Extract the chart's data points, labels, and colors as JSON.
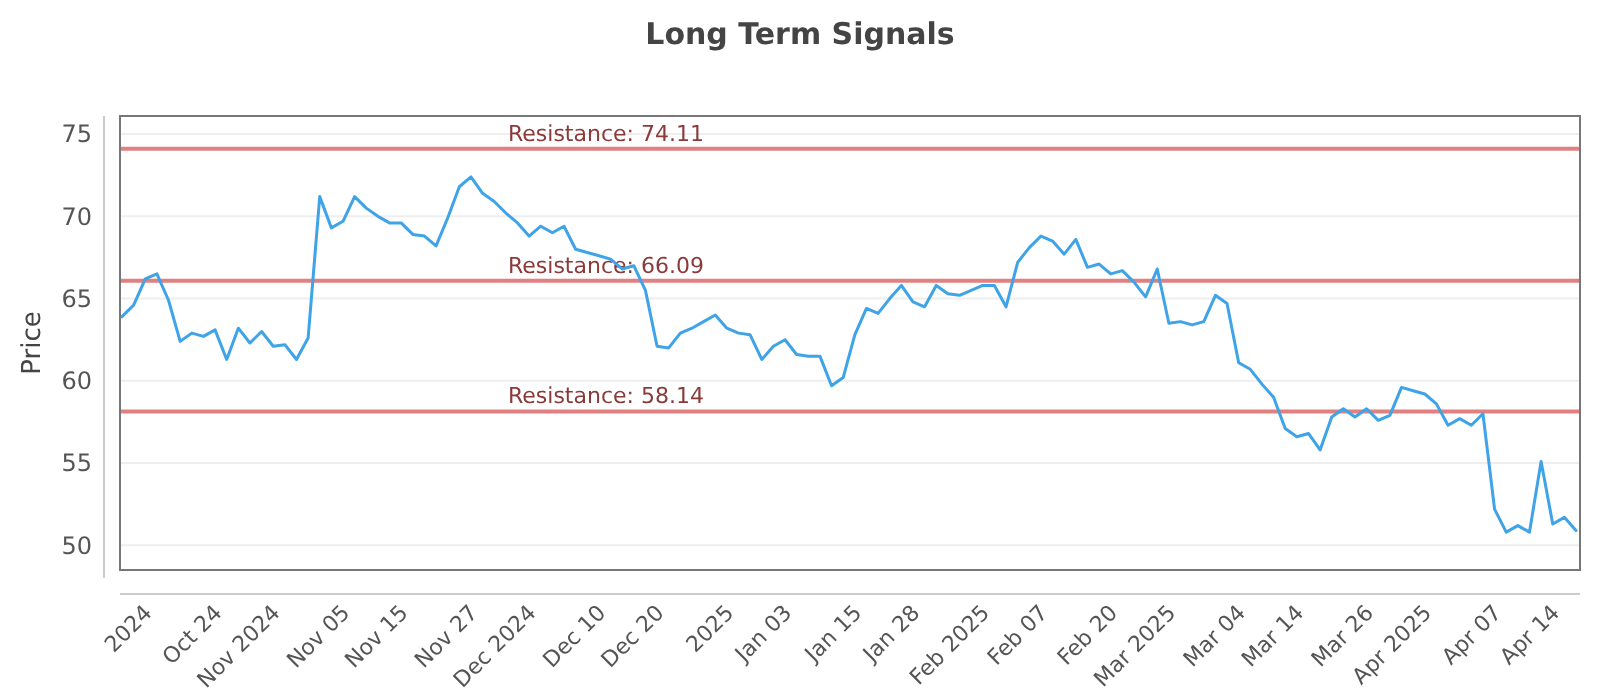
{
  "chart_data": {
    "type": "line",
    "title": "Long Term Signals",
    "ylabel": "Price",
    "categories": [
      null,
      null,
      "2024",
      null,
      null,
      null,
      null,
      null,
      "Oct 24",
      null,
      null,
      null,
      null,
      "Nov 2024",
      null,
      null,
      null,
      null,
      null,
      "Nov 05",
      null,
      null,
      null,
      null,
      "Nov 15",
      null,
      null,
      null,
      null,
      null,
      "Nov 27",
      null,
      null,
      null,
      null,
      "Dec 2024",
      null,
      null,
      null,
      null,
      null,
      "Dec 10",
      null,
      null,
      null,
      null,
      "Dec 20",
      null,
      null,
      null,
      null,
      null,
      "2025",
      null,
      null,
      null,
      null,
      "Jan 03",
      null,
      null,
      null,
      null,
      null,
      "Jan 15",
      null,
      null,
      null,
      null,
      "Jan 28",
      null,
      null,
      null,
      null,
      null,
      "Feb 2025",
      null,
      null,
      null,
      null,
      "Feb 07",
      null,
      null,
      null,
      null,
      null,
      "Feb 20",
      null,
      null,
      null,
      null,
      "Mar 2025",
      null,
      null,
      null,
      null,
      null,
      "Mar 04",
      null,
      null,
      null,
      null,
      "Mar 14",
      null,
      null,
      null,
      null,
      null,
      "Mar 26",
      null,
      null,
      null,
      null,
      "Apr 2025",
      null,
      null,
      null,
      null,
      null,
      "Apr 07",
      null,
      null,
      null,
      null,
      "Apr 14",
      null,
      null
    ],
    "series": [
      {
        "color": "#3fa3e8",
        "values": [
          63.9,
          64.6,
          66.2,
          66.5,
          64.9,
          62.4,
          62.9,
          62.7,
          63.1,
          61.3,
          63.2,
          62.3,
          63.0,
          62.1,
          62.2,
          61.3,
          62.6,
          71.2,
          69.3,
          69.7,
          71.2,
          70.5,
          70.0,
          69.6,
          69.6,
          68.9,
          68.8,
          68.2,
          69.9,
          71.8,
          72.4,
          71.4,
          70.9,
          70.2,
          69.6,
          68.8,
          69.4,
          69.0,
          69.4,
          68.0,
          67.8,
          67.6,
          67.4,
          66.8,
          67.0,
          65.5,
          62.1,
          62.0,
          62.9,
          63.2,
          63.6,
          64.0,
          63.2,
          62.9,
          62.8,
          61.3,
          62.1,
          62.5,
          61.6,
          61.5,
          61.5,
          59.7,
          60.2,
          62.8,
          64.4,
          64.1,
          65.0,
          65.8,
          64.8,
          64.5,
          65.8,
          65.3,
          65.2,
          65.5,
          65.8,
          65.8,
          64.5,
          67.2,
          68.1,
          68.8,
          68.5,
          67.7,
          68.6,
          66.9,
          67.1,
          66.5,
          66.7,
          66.0,
          65.1,
          66.8,
          63.5,
          63.6,
          63.4,
          63.6,
          65.2,
          64.7,
          61.1,
          60.7,
          59.8,
          59.0,
          57.1,
          56.6,
          56.8,
          55.8,
          57.8,
          58.3,
          57.8,
          58.3,
          57.6,
          57.9,
          59.6,
          59.4,
          59.2,
          58.6,
          57.3,
          57.7,
          57.3,
          58.0,
          52.2,
          50.8,
          51.2,
          50.8,
          55.1,
          51.3,
          51.7,
          50.9
        ]
      }
    ],
    "ylim": [
      48.5,
      76.1
    ],
    "yticks": [
      50,
      55,
      60,
      65,
      70,
      75
    ],
    "grid": "y",
    "marker": "none",
    "line_style": "solid",
    "ref_lines": [
      {
        "axis": "y",
        "value": 74.11,
        "label": "Resistance: 74.11",
        "color": "#e08080"
      },
      {
        "axis": "y",
        "value": 66.09,
        "label": "Resistance: 66.09",
        "color": "#e08080"
      },
      {
        "axis": "y",
        "value": 58.14,
        "label": "Resistance: 58.14",
        "color": "#e08080"
      }
    ]
  }
}
